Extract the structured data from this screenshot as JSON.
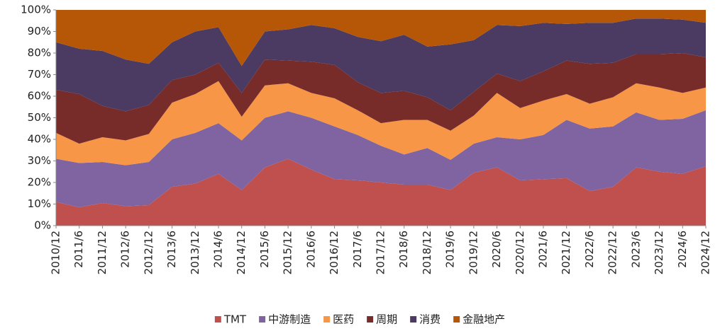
{
  "chart_data": {
    "type": "stacked_area",
    "categories": [
      "2010/12",
      "2011/6",
      "2011/12",
      "2012/6",
      "2012/12",
      "2013/6",
      "2013/12",
      "2014/6",
      "2014/12",
      "2015/6",
      "2015/12",
      "2016/6",
      "2016/12",
      "2017/6",
      "2017/12",
      "2018/6",
      "2018/12",
      "2019/6",
      "2019/12",
      "2020/6",
      "2020/12",
      "2021/6",
      "2021/12",
      "2022/6",
      "2022/12",
      "2023/6",
      "2023/12",
      "2024/6",
      "2024/12"
    ],
    "series": [
      {
        "name": "TMT",
        "color": "#c0504d",
        "values": [
          11,
          8.5,
          10.5,
          9,
          9.5,
          18,
          19.5,
          24,
          16.5,
          27,
          31,
          26,
          21.5,
          21,
          20,
          19,
          19,
          16.5,
          24.5,
          27,
          21,
          21.5,
          22,
          16,
          18,
          27,
          25,
          24,
          27.5
        ]
      },
      {
        "name": "中游制造",
        "color": "#8064a2",
        "values": [
          20,
          20.5,
          19,
          19,
          20,
          22,
          23.5,
          23.5,
          23,
          23,
          22,
          24,
          24.5,
          21,
          17,
          14,
          17,
          14,
          13.5,
          14,
          19,
          20.5,
          27,
          29,
          28,
          25.5,
          24,
          25.5,
          26
        ]
      },
      {
        "name": "医药",
        "color": "#f79646",
        "values": [
          12,
          9,
          11.5,
          11.5,
          13,
          17,
          18,
          19.5,
          11,
          15,
          13,
          11.5,
          13,
          11.5,
          10.5,
          16,
          13,
          13.5,
          13,
          20.5,
          14.5,
          16,
          12,
          11.5,
          13.5,
          13.5,
          15,
          12,
          10.5
        ]
      },
      {
        "name": "周期",
        "color": "#772c2a",
        "values": [
          20,
          23,
          14.5,
          13.5,
          13.5,
          10.5,
          9,
          8.5,
          11,
          12,
          10.5,
          14.5,
          15.5,
          13,
          14,
          13.5,
          10.5,
          9.5,
          11,
          9,
          12.5,
          13.5,
          15.5,
          18.5,
          16,
          13.5,
          15.5,
          18.5,
          14
        ]
      },
      {
        "name": "消费",
        "color": "#4b3a62",
        "values": [
          22,
          21,
          25.5,
          24,
          19,
          17.5,
          20,
          16.5,
          12.5,
          13,
          14.5,
          17,
          17,
          21,
          24,
          26,
          23.5,
          30.5,
          24,
          22.5,
          25.5,
          22.5,
          17,
          19,
          18.5,
          16.5,
          16.5,
          15.5,
          16
        ]
      },
      {
        "name": "金融地产",
        "color": "#b65708",
        "values": [
          15,
          18,
          19,
          23,
          25,
          15,
          10,
          8,
          26,
          10,
          9,
          7,
          8.5,
          12.5,
          14.5,
          11.5,
          17,
          16,
          14,
          7,
          7.5,
          6,
          6.5,
          6,
          6,
          4,
          4,
          4.5,
          6
        ]
      }
    ],
    "ylim": [
      0,
      100
    ],
    "yticks": [
      {
        "value": 0,
        "label": "0%"
      },
      {
        "value": 10,
        "label": "10%"
      },
      {
        "value": 20,
        "label": "20%"
      },
      {
        "value": 30,
        "label": "30%"
      },
      {
        "value": 40,
        "label": "40%"
      },
      {
        "value": 50,
        "label": "50%"
      },
      {
        "value": 60,
        "label": "60%"
      },
      {
        "value": 70,
        "label": "70%"
      },
      {
        "value": 80,
        "label": "80%"
      },
      {
        "value": 90,
        "label": "90%"
      },
      {
        "value": 100,
        "label": "100%"
      }
    ],
    "legend": "bottom"
  }
}
